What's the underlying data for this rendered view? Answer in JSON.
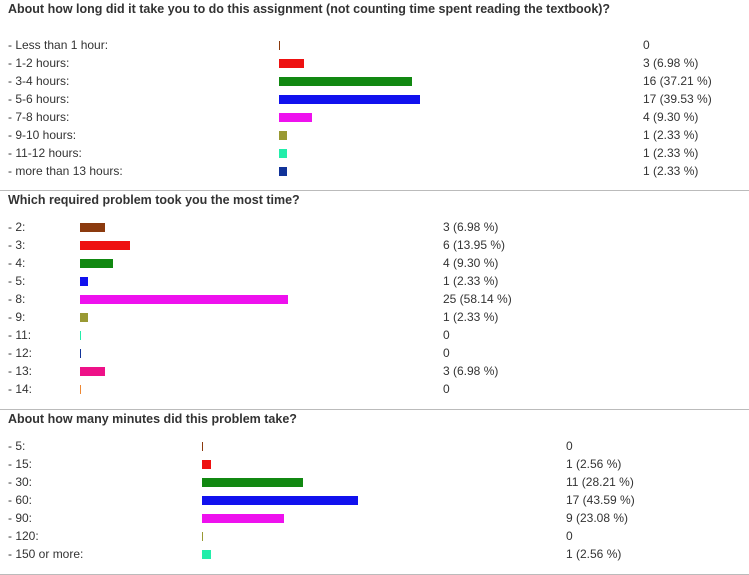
{
  "chart_data": [
    {
      "type": "bar",
      "orientation": "horizontal",
      "title": "About how long did it take you to do this assignment (not counting time spent reading the textbook)?",
      "categories": [
        "- Less than 1 hour:",
        "- 1-2 hours:",
        "- 3-4 hours:",
        "- 5-6 hours:",
        "- 7-8 hours:",
        "- 9-10 hours:",
        "- 11-12 hours:",
        "- more than 13 hours:"
      ],
      "values": [
        0,
        3,
        16,
        17,
        4,
        1,
        1,
        1
      ],
      "value_labels": [
        "0",
        "3 (6.98 %)",
        "16 (37.21 %)",
        "17 (39.53 %)",
        "4 (9.30 %)",
        "1 (2.33 %)",
        "1 (2.33 %)",
        "1 (2.33 %)"
      ],
      "colors": [
        "#8b3a0e",
        "#ee1111",
        "#118811",
        "#1111ee",
        "#ee11ee",
        "#999933",
        "#22eeaa",
        "#113399"
      ]
    },
    {
      "type": "bar",
      "orientation": "horizontal",
      "title": "Which required problem took you the most time?",
      "categories": [
        "- 2:",
        "- 3:",
        "- 4:",
        "- 5:",
        "- 8:",
        "- 9:",
        "- 11:",
        "- 12:",
        "- 13:",
        "- 14:"
      ],
      "values": [
        3,
        6,
        4,
        1,
        25,
        1,
        0,
        0,
        3,
        0
      ],
      "value_labels": [
        "3 (6.98 %)",
        "6 (13.95 %)",
        "4 (9.30 %)",
        "1 (2.33 %)",
        "25 (58.14 %)",
        "1 (2.33 %)",
        "0",
        "0",
        "3 (6.98 %)",
        "0"
      ],
      "colors": [
        "#8b3a0e",
        "#ee1111",
        "#118811",
        "#1111ee",
        "#ee11ee",
        "#999933",
        "#22eeaa",
        "#113399",
        "#ee1188",
        "#ee8833"
      ]
    },
    {
      "type": "bar",
      "orientation": "horizontal",
      "title": "About how many minutes did this problem take?",
      "categories": [
        "- 5:",
        "- 15:",
        "- 30:",
        "- 60:",
        "- 90:",
        "- 120:",
        "- 150 or more:"
      ],
      "values": [
        0,
        1,
        11,
        17,
        9,
        0,
        1
      ],
      "value_labels": [
        "0",
        "1 (2.56 %)",
        "11 (28.21 %)",
        "17 (43.59 %)",
        "9 (23.08 %)",
        "0",
        "1 (2.56 %)"
      ],
      "colors": [
        "#8b3a0e",
        "#ee1111",
        "#118811",
        "#1111ee",
        "#ee11ee",
        "#999933",
        "#22eeaa"
      ]
    }
  ]
}
